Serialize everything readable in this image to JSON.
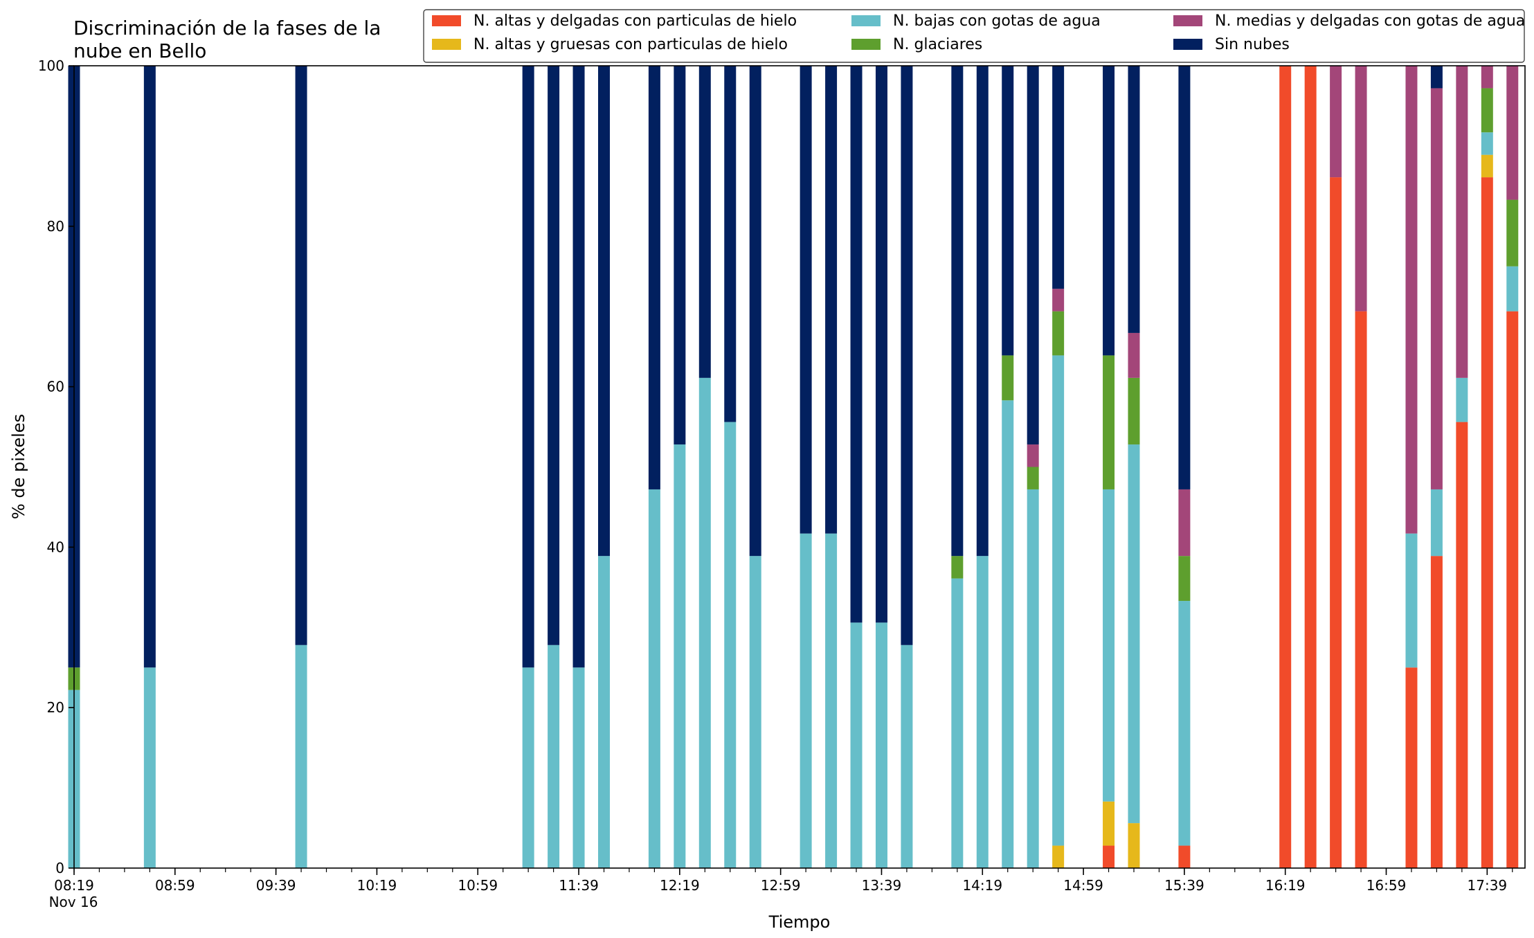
{
  "chart_data": {
    "type": "bar",
    "stacked": true,
    "title_lines": [
      "Discriminación de la fases de la",
      "nube en Bello"
    ],
    "xlabel": "Tiempo",
    "ylabel": "% de pixeles",
    "ylim": [
      0,
      100
    ],
    "yticks": [
      0,
      20,
      40,
      60,
      80,
      100
    ],
    "xtick_labels": [
      "08:19",
      "08:59",
      "09:39",
      "10:19",
      "10:59",
      "11:39",
      "12:19",
      "12:59",
      "13:39",
      "14:19",
      "14:59",
      "15:39",
      "16:19",
      "16:59",
      "17:39"
    ],
    "xtick_date_label": "Nov 16",
    "x_start": "08:19",
    "x_end": "17:54",
    "minor_tick_minutes": 10,
    "legend_position": "top-right",
    "grid": false,
    "x": [
      "08:19",
      "08:49",
      "09:49",
      "11:19",
      "11:29",
      "11:39",
      "11:49",
      "12:09",
      "12:19",
      "12:29",
      "12:39",
      "12:49",
      "13:09",
      "13:19",
      "13:29",
      "13:39",
      "13:49",
      "14:09",
      "14:19",
      "14:29",
      "14:39",
      "14:49",
      "15:09",
      "15:19",
      "15:39",
      "16:19",
      "16:29",
      "16:39",
      "16:49",
      "17:09",
      "17:19",
      "17:29",
      "17:39",
      "17:49"
    ],
    "series": [
      {
        "name": "N. altas y delgadas con particulas de hielo",
        "color": "#f14b2a",
        "values": [
          0,
          0,
          0,
          0,
          0,
          0,
          0,
          0,
          0,
          0,
          0,
          0,
          0,
          0,
          0,
          0,
          0,
          0,
          0,
          0,
          0,
          0,
          2.8,
          0,
          2.8,
          100,
          100,
          86.1,
          69.4,
          25,
          38.9,
          55.6,
          86.1,
          69.4
        ]
      },
      {
        "name": "N. altas y gruesas con particulas de hielo",
        "color": "#e6b81b",
        "values": [
          0,
          0,
          0,
          0,
          0,
          0,
          0,
          0,
          0,
          0,
          0,
          0,
          0,
          0,
          0,
          0,
          0,
          0,
          0,
          0,
          0,
          2.8,
          5.5,
          5.6,
          0,
          0,
          0,
          0,
          0,
          0,
          0,
          0,
          2.8,
          0
        ]
      },
      {
        "name": "N. bajas con gotas de agua",
        "color": "#66bec9",
        "values": [
          22.2,
          25,
          27.8,
          25,
          27.8,
          25,
          38.9,
          47.2,
          52.8,
          61.1,
          55.6,
          38.9,
          41.7,
          41.7,
          30.6,
          30.6,
          27.8,
          36.1,
          38.9,
          58.3,
          47.2,
          61.1,
          38.9,
          47.2,
          30.5,
          0,
          0,
          0,
          0,
          16.7,
          8.3,
          5.5,
          2.8,
          5.6
        ]
      },
      {
        "name": "N. glaciares",
        "color": "#5e9f2e",
        "values": [
          2.8,
          0,
          0,
          0,
          0,
          0,
          0,
          0,
          0,
          0,
          0,
          0,
          0,
          0,
          0,
          0,
          0,
          2.8,
          0,
          5.6,
          2.8,
          5.5,
          16.7,
          8.3,
          5.6,
          0,
          0,
          0,
          0,
          0,
          0,
          0,
          5.5,
          8.3
        ]
      },
      {
        "name": "N. medias y delgadas con gotas de agua",
        "color": "#a34679",
        "values": [
          0,
          0,
          0,
          0,
          0,
          0,
          0,
          0,
          0,
          0,
          0,
          0,
          0,
          0,
          0,
          0,
          0,
          0,
          0,
          0,
          2.8,
          2.8,
          0,
          5.6,
          8.3,
          0,
          0,
          13.9,
          30.6,
          58.3,
          50,
          38.9,
          2.8,
          16.7
        ]
      },
      {
        "name": "Sin nubes",
        "color": "#02205f",
        "values": [
          75,
          75,
          72.2,
          75,
          72.2,
          75,
          61.1,
          52.8,
          47.2,
          38.9,
          44.4,
          61.1,
          58.3,
          58.3,
          69.4,
          69.4,
          72.2,
          61.1,
          61.1,
          36.1,
          47.2,
          27.8,
          36.1,
          33.3,
          52.8,
          0,
          0,
          0,
          0,
          0,
          2.8,
          0,
          0,
          0
        ]
      }
    ]
  }
}
